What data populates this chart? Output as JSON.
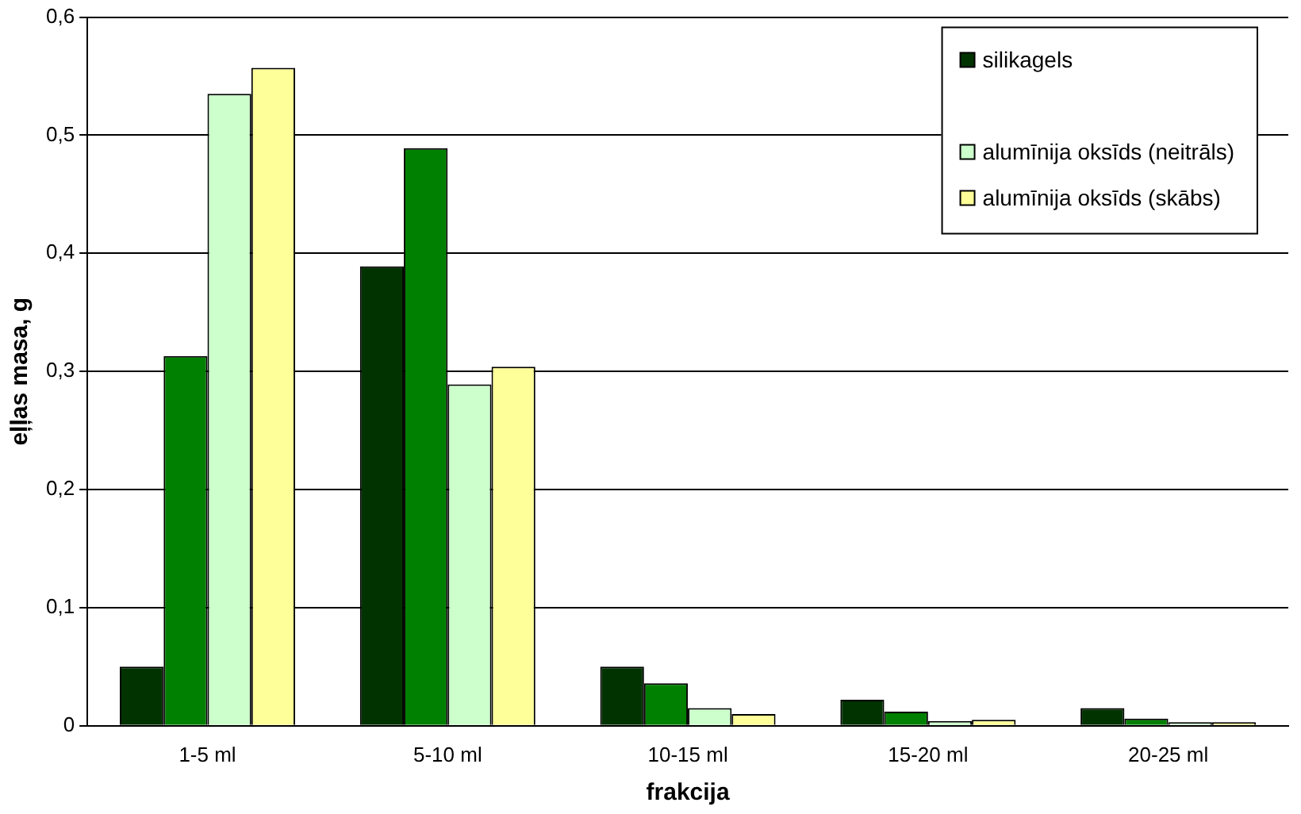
{
  "chart_data": {
    "type": "bar",
    "xlabel": "frakcija",
    "ylabel": "eļļas masa, g",
    "categories": [
      "1-5 ml",
      "5-10 ml",
      "10-15 ml",
      "15-20 ml",
      "20-25 ml"
    ],
    "series": [
      {
        "name": "silikagels",
        "color": "#003300",
        "values": [
          0.05,
          0.389,
          0.05,
          0.022,
          0.015
        ]
      },
      {
        "color": "#008000",
        "values": [
          0.313,
          0.489,
          0.036,
          0.012,
          0.006
        ]
      },
      {
        "name": "alumīnija oksīds (neitrāls)",
        "color": "#ccffcc",
        "values": [
          0.535,
          0.289,
          0.015,
          0.004,
          0.003
        ]
      },
      {
        "name": "alumīnija oksīds (skābs)",
        "color": "#ffff99",
        "values": [
          0.557,
          0.304,
          0.01,
          0.005,
          0.003
        ]
      }
    ],
    "ylim": [
      0,
      0.6
    ],
    "yticks": [
      0,
      {
        "value": 0.1,
        "label": "0,1"
      },
      {
        "value": 0.2,
        "label": "0,2"
      },
      {
        "value": 0.3,
        "label": "0,3"
      },
      {
        "value": 0.4,
        "label": "0,4"
      },
      {
        "value": 0.5,
        "label": "0,5"
      },
      {
        "value": 0.6,
        "label": "0,6"
      }
    ],
    "grid": "y",
    "legend": "top right"
  }
}
